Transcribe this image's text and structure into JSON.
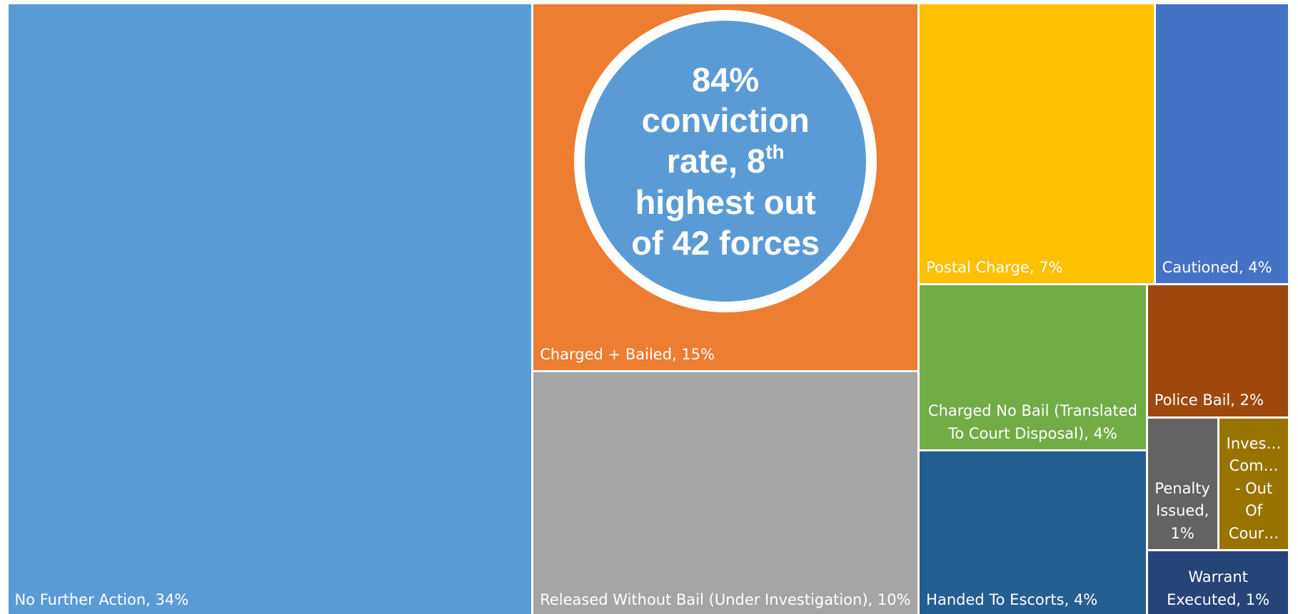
{
  "chart_data": {
    "type": "treemap",
    "categories": [
      "No Further Action, 34%",
      "Charged + Bailed, 15%",
      "Released Without Bail (Under Investigation), 10%",
      "Postal Charge, 7%",
      "Cautioned, 4%",
      "Charged No Bail (Translated To Court Disposal), 4%",
      "Handed To Escorts, 4%",
      "Police Bail, 2%",
      "Penalty Issued, 1%",
      "Inves… Com… - Out Of Cour…",
      "Warrant Executed, 1%"
    ],
    "values": [
      34,
      15,
      10,
      7,
      4,
      4,
      4,
      2,
      1,
      1,
      1
    ],
    "colors": [
      "#5b9bd5",
      "#ed7d31",
      "#a5a5a5",
      "#ffc000",
      "#4472c4",
      "#70ad47",
      "#255e91",
      "#9e480e",
      "#636363",
      "#997300",
      "#264478"
    ],
    "annotation": {
      "lines": [
        "84%",
        "conviction",
        "rate, 8",
        "highest out",
        "of 42 forces"
      ],
      "superscript": "th"
    }
  }
}
